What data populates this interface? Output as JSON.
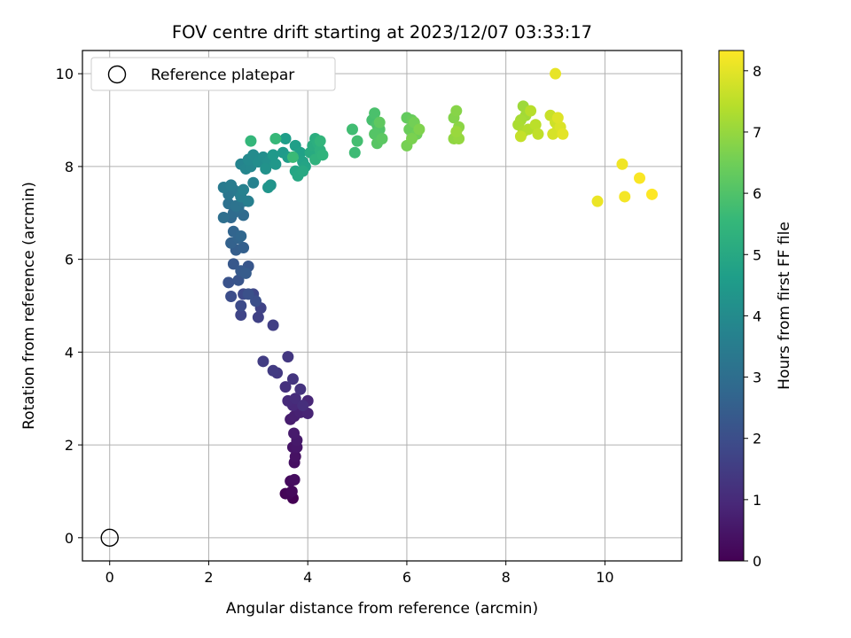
{
  "chart_data": {
    "type": "scatter",
    "title": "FOV centre drift starting at 2023/12/07 03:33:17",
    "xlabel": "Angular distance from reference (arcmin)",
    "ylabel": "Rotation from reference (arcmin)",
    "xlim": [
      -0.55,
      11.55
    ],
    "ylim": [
      -0.5,
      10.5
    ],
    "xticks": [
      "0",
      "2",
      "4",
      "6",
      "8",
      "10"
    ],
    "yticks": [
      "0",
      "2",
      "4",
      "6",
      "8",
      "10"
    ],
    "grid": true,
    "legend": {
      "position": "top-left",
      "label": "Reference platepar"
    },
    "reference": {
      "x": 0,
      "y": 0
    },
    "colorbar": {
      "label": "Hours from first FF file",
      "min": 0,
      "max": 8.33,
      "ticks": [
        "0",
        "1",
        "2",
        "3",
        "4",
        "5",
        "6",
        "7",
        "8"
      ],
      "colormap": "viridis"
    },
    "series": [
      {
        "points": [
          [
            3.7,
            0.85
          ],
          [
            3.55,
            0.95
          ],
          [
            3.62,
            0.95
          ],
          [
            3.68,
            1.0
          ],
          [
            3.65,
            1.22
          ],
          [
            3.73,
            1.25
          ],
          [
            3.73,
            1.62
          ],
          [
            3.75,
            1.75
          ],
          [
            3.7,
            1.95
          ],
          [
            3.78,
            1.95
          ],
          [
            3.78,
            2.1
          ],
          [
            3.72,
            2.25
          ],
          [
            3.65,
            2.55
          ],
          [
            3.73,
            2.62
          ],
          [
            3.85,
            2.7
          ],
          [
            4.0,
            2.68
          ],
          [
            4.0,
            2.95
          ],
          [
            3.7,
            2.85
          ],
          [
            3.6,
            2.95
          ],
          [
            3.75,
            3.0
          ],
          [
            3.9,
            2.85
          ],
          [
            3.55,
            3.25
          ],
          [
            3.85,
            3.2
          ],
          [
            3.7,
            3.42
          ],
          [
            3.6,
            3.9
          ],
          [
            3.38,
            3.55
          ],
          [
            3.3,
            3.6
          ],
          [
            3.1,
            3.8
          ],
          [
            3.3,
            4.58
          ],
          [
            3.0,
            4.75
          ],
          [
            3.05,
            4.95
          ],
          [
            2.65,
            4.8
          ],
          [
            2.9,
            5.25
          ],
          [
            2.7,
            5.25
          ],
          [
            2.65,
            5.0
          ],
          [
            2.45,
            5.2
          ],
          [
            2.95,
            5.1
          ],
          [
            2.8,
            5.25
          ],
          [
            2.4,
            5.5
          ],
          [
            2.6,
            5.55
          ],
          [
            2.8,
            5.85
          ],
          [
            2.5,
            5.9
          ],
          [
            2.65,
            5.75
          ],
          [
            2.75,
            5.7
          ],
          [
            2.55,
            6.2
          ],
          [
            2.7,
            6.25
          ],
          [
            2.45,
            6.35
          ],
          [
            2.6,
            6.45
          ],
          [
            2.5,
            6.6
          ],
          [
            2.65,
            6.5
          ],
          [
            2.45,
            6.9
          ],
          [
            2.7,
            6.95
          ],
          [
            2.5,
            7.0
          ],
          [
            2.6,
            7.1
          ],
          [
            2.3,
            6.9
          ],
          [
            2.4,
            7.2
          ],
          [
            2.55,
            7.15
          ],
          [
            2.7,
            7.25
          ],
          [
            2.4,
            7.4
          ],
          [
            2.5,
            7.5
          ],
          [
            2.6,
            7.45
          ],
          [
            2.3,
            7.55
          ],
          [
            2.45,
            7.6
          ],
          [
            2.65,
            7.35
          ],
          [
            2.8,
            7.25
          ],
          [
            2.7,
            7.5
          ],
          [
            2.9,
            7.65
          ],
          [
            2.65,
            8.05
          ],
          [
            2.75,
            7.95
          ],
          [
            2.85,
            8.0
          ],
          [
            2.8,
            8.15
          ],
          [
            2.9,
            8.25
          ],
          [
            3.0,
            8.1
          ],
          [
            3.1,
            8.2
          ],
          [
            3.2,
            8.1
          ],
          [
            3.15,
            7.95
          ],
          [
            3.25,
            7.6
          ],
          [
            3.2,
            7.55
          ],
          [
            3.35,
            8.05
          ],
          [
            3.3,
            8.25
          ],
          [
            3.5,
            8.3
          ],
          [
            3.6,
            8.2
          ],
          [
            3.55,
            8.6
          ],
          [
            3.75,
            8.45
          ],
          [
            3.85,
            8.3
          ],
          [
            3.9,
            8.1
          ],
          [
            3.95,
            8.0
          ],
          [
            3.75,
            7.9
          ],
          [
            3.8,
            7.8
          ],
          [
            3.9,
            7.9
          ],
          [
            4.05,
            8.3
          ],
          [
            4.1,
            8.45
          ],
          [
            4.15,
            8.6
          ],
          [
            4.2,
            8.5
          ],
          [
            4.25,
            8.35
          ],
          [
            4.15,
            8.15
          ],
          [
            4.3,
            8.25
          ],
          [
            4.25,
            8.55
          ],
          [
            2.85,
            8.55
          ],
          [
            3.35,
            8.6
          ],
          [
            3.7,
            8.2
          ],
          [
            4.95,
            8.3
          ],
          [
            4.9,
            8.8
          ],
          [
            5.0,
            8.55
          ],
          [
            5.3,
            9.0
          ],
          [
            5.35,
            9.15
          ],
          [
            5.4,
            8.9
          ],
          [
            5.45,
            8.8
          ],
          [
            5.35,
            8.7
          ],
          [
            5.4,
            8.5
          ],
          [
            5.5,
            8.6
          ],
          [
            5.45,
            8.95
          ],
          [
            6.0,
            9.05
          ],
          [
            6.1,
            9.0
          ],
          [
            6.05,
            8.8
          ],
          [
            6.2,
            8.7
          ],
          [
            6.15,
            8.95
          ],
          [
            6.0,
            8.45
          ],
          [
            6.1,
            8.6
          ],
          [
            6.25,
            8.8
          ],
          [
            6.95,
            9.05
          ],
          [
            7.0,
            9.2
          ],
          [
            7.05,
            8.85
          ],
          [
            6.95,
            8.6
          ],
          [
            7.05,
            8.6
          ],
          [
            7.0,
            8.75
          ],
          [
            8.35,
            9.3
          ],
          [
            8.4,
            9.1
          ],
          [
            8.3,
            9.0
          ],
          [
            8.25,
            8.9
          ],
          [
            8.35,
            8.75
          ],
          [
            8.45,
            8.8
          ],
          [
            8.5,
            9.2
          ],
          [
            8.6,
            8.9
          ],
          [
            8.65,
            8.7
          ],
          [
            8.3,
            8.65
          ],
          [
            8.9,
            9.1
          ],
          [
            9.0,
            8.95
          ],
          [
            9.05,
            8.8
          ],
          [
            8.95,
            8.7
          ],
          [
            9.1,
            8.85
          ],
          [
            9.05,
            9.05
          ],
          [
            9.15,
            8.7
          ],
          [
            9.0,
            10.0
          ],
          [
            9.85,
            7.25
          ],
          [
            10.35,
            8.05
          ],
          [
            10.4,
            7.35
          ],
          [
            10.7,
            7.75
          ],
          [
            10.95,
            7.4
          ]
        ]
      }
    ]
  }
}
